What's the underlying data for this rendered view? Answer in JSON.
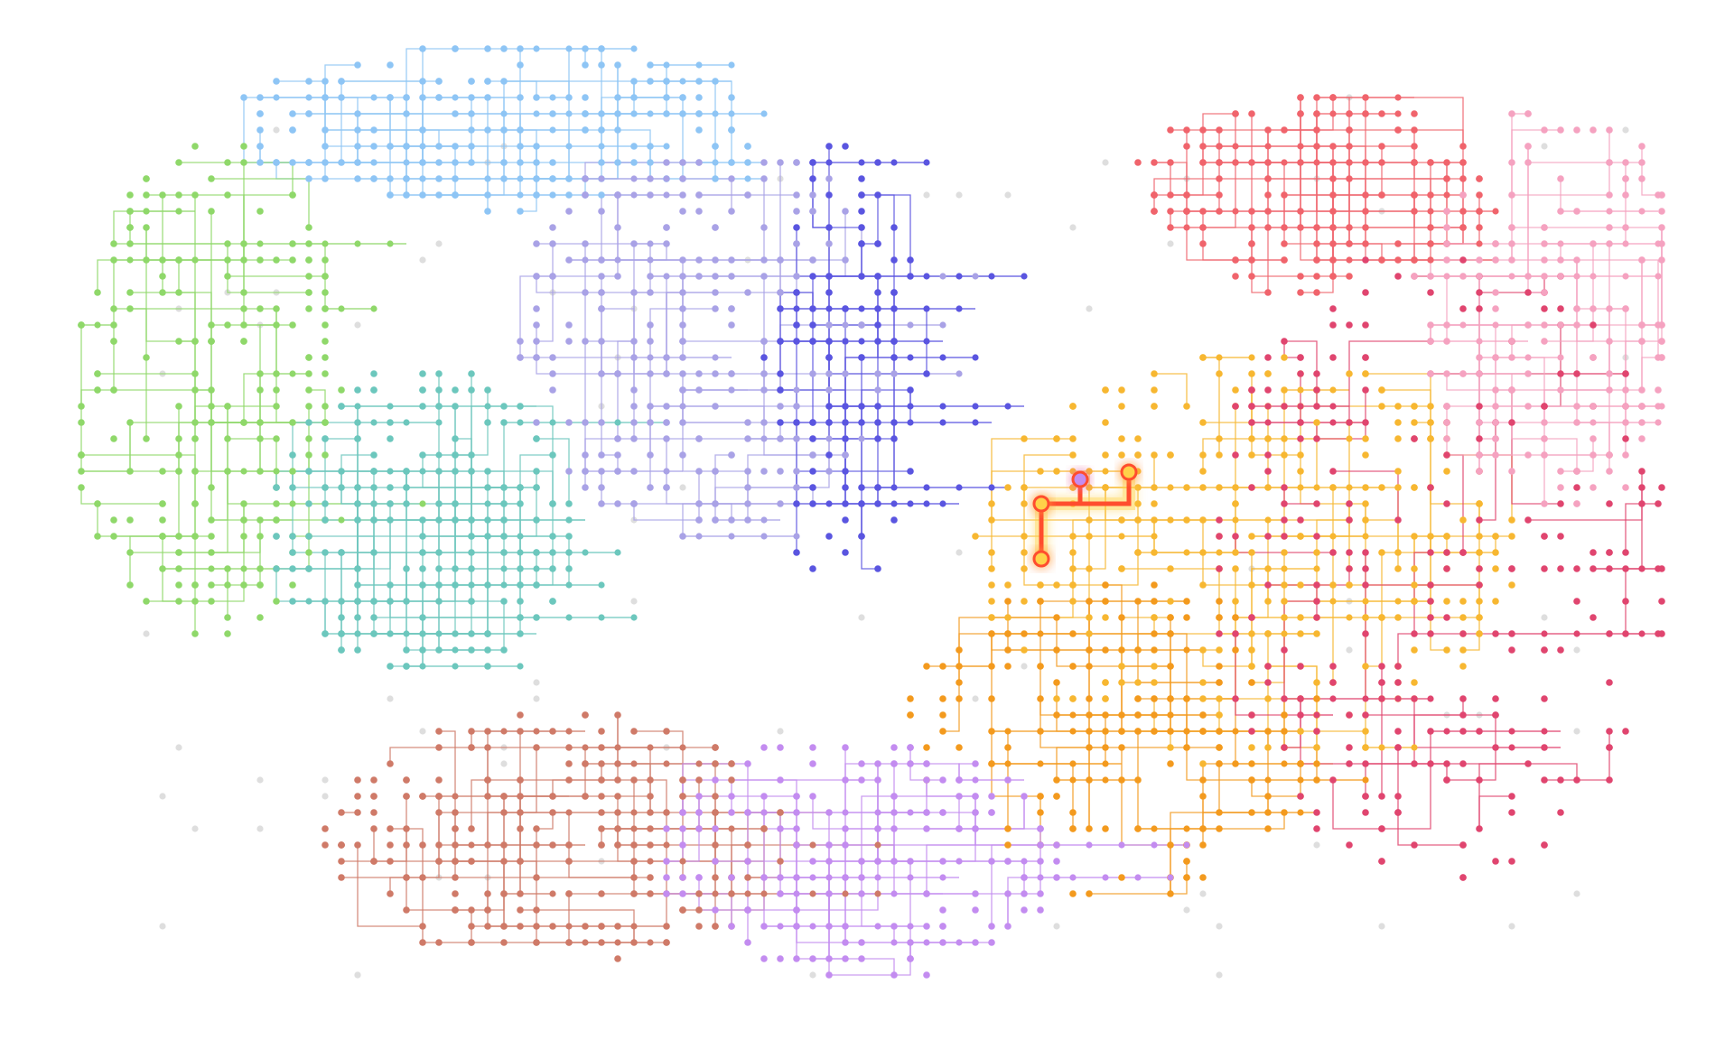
{
  "map": {
    "type": "metabolic-pathway-network",
    "highlight_color": "#ff4d2e",
    "glow_color": "#ffd24a",
    "background_node_color": "#dedede",
    "regions": [
      {
        "id": "blue",
        "color": "#8ec5f5"
      },
      {
        "id": "lightgreen",
        "color": "#8fd86a"
      },
      {
        "id": "teal",
        "color": "#6cc7bd"
      },
      {
        "id": "lavender",
        "color": "#a9a2e6"
      },
      {
        "id": "indigo",
        "color": "#5a55e0"
      },
      {
        "id": "orange",
        "color": "#f7b731"
      },
      {
        "id": "darkorange",
        "color": "#f39a1e"
      },
      {
        "id": "salmon",
        "color": "#f0646c"
      },
      {
        "id": "crimson",
        "color": "#e0456f"
      },
      {
        "id": "pink",
        "color": "#f5a2c0"
      },
      {
        "id": "brown",
        "color": "#cf7a68"
      },
      {
        "id": "violet",
        "color": "#c38cf0"
      }
    ],
    "highlighted_path": {
      "node_count": 4
    }
  }
}
